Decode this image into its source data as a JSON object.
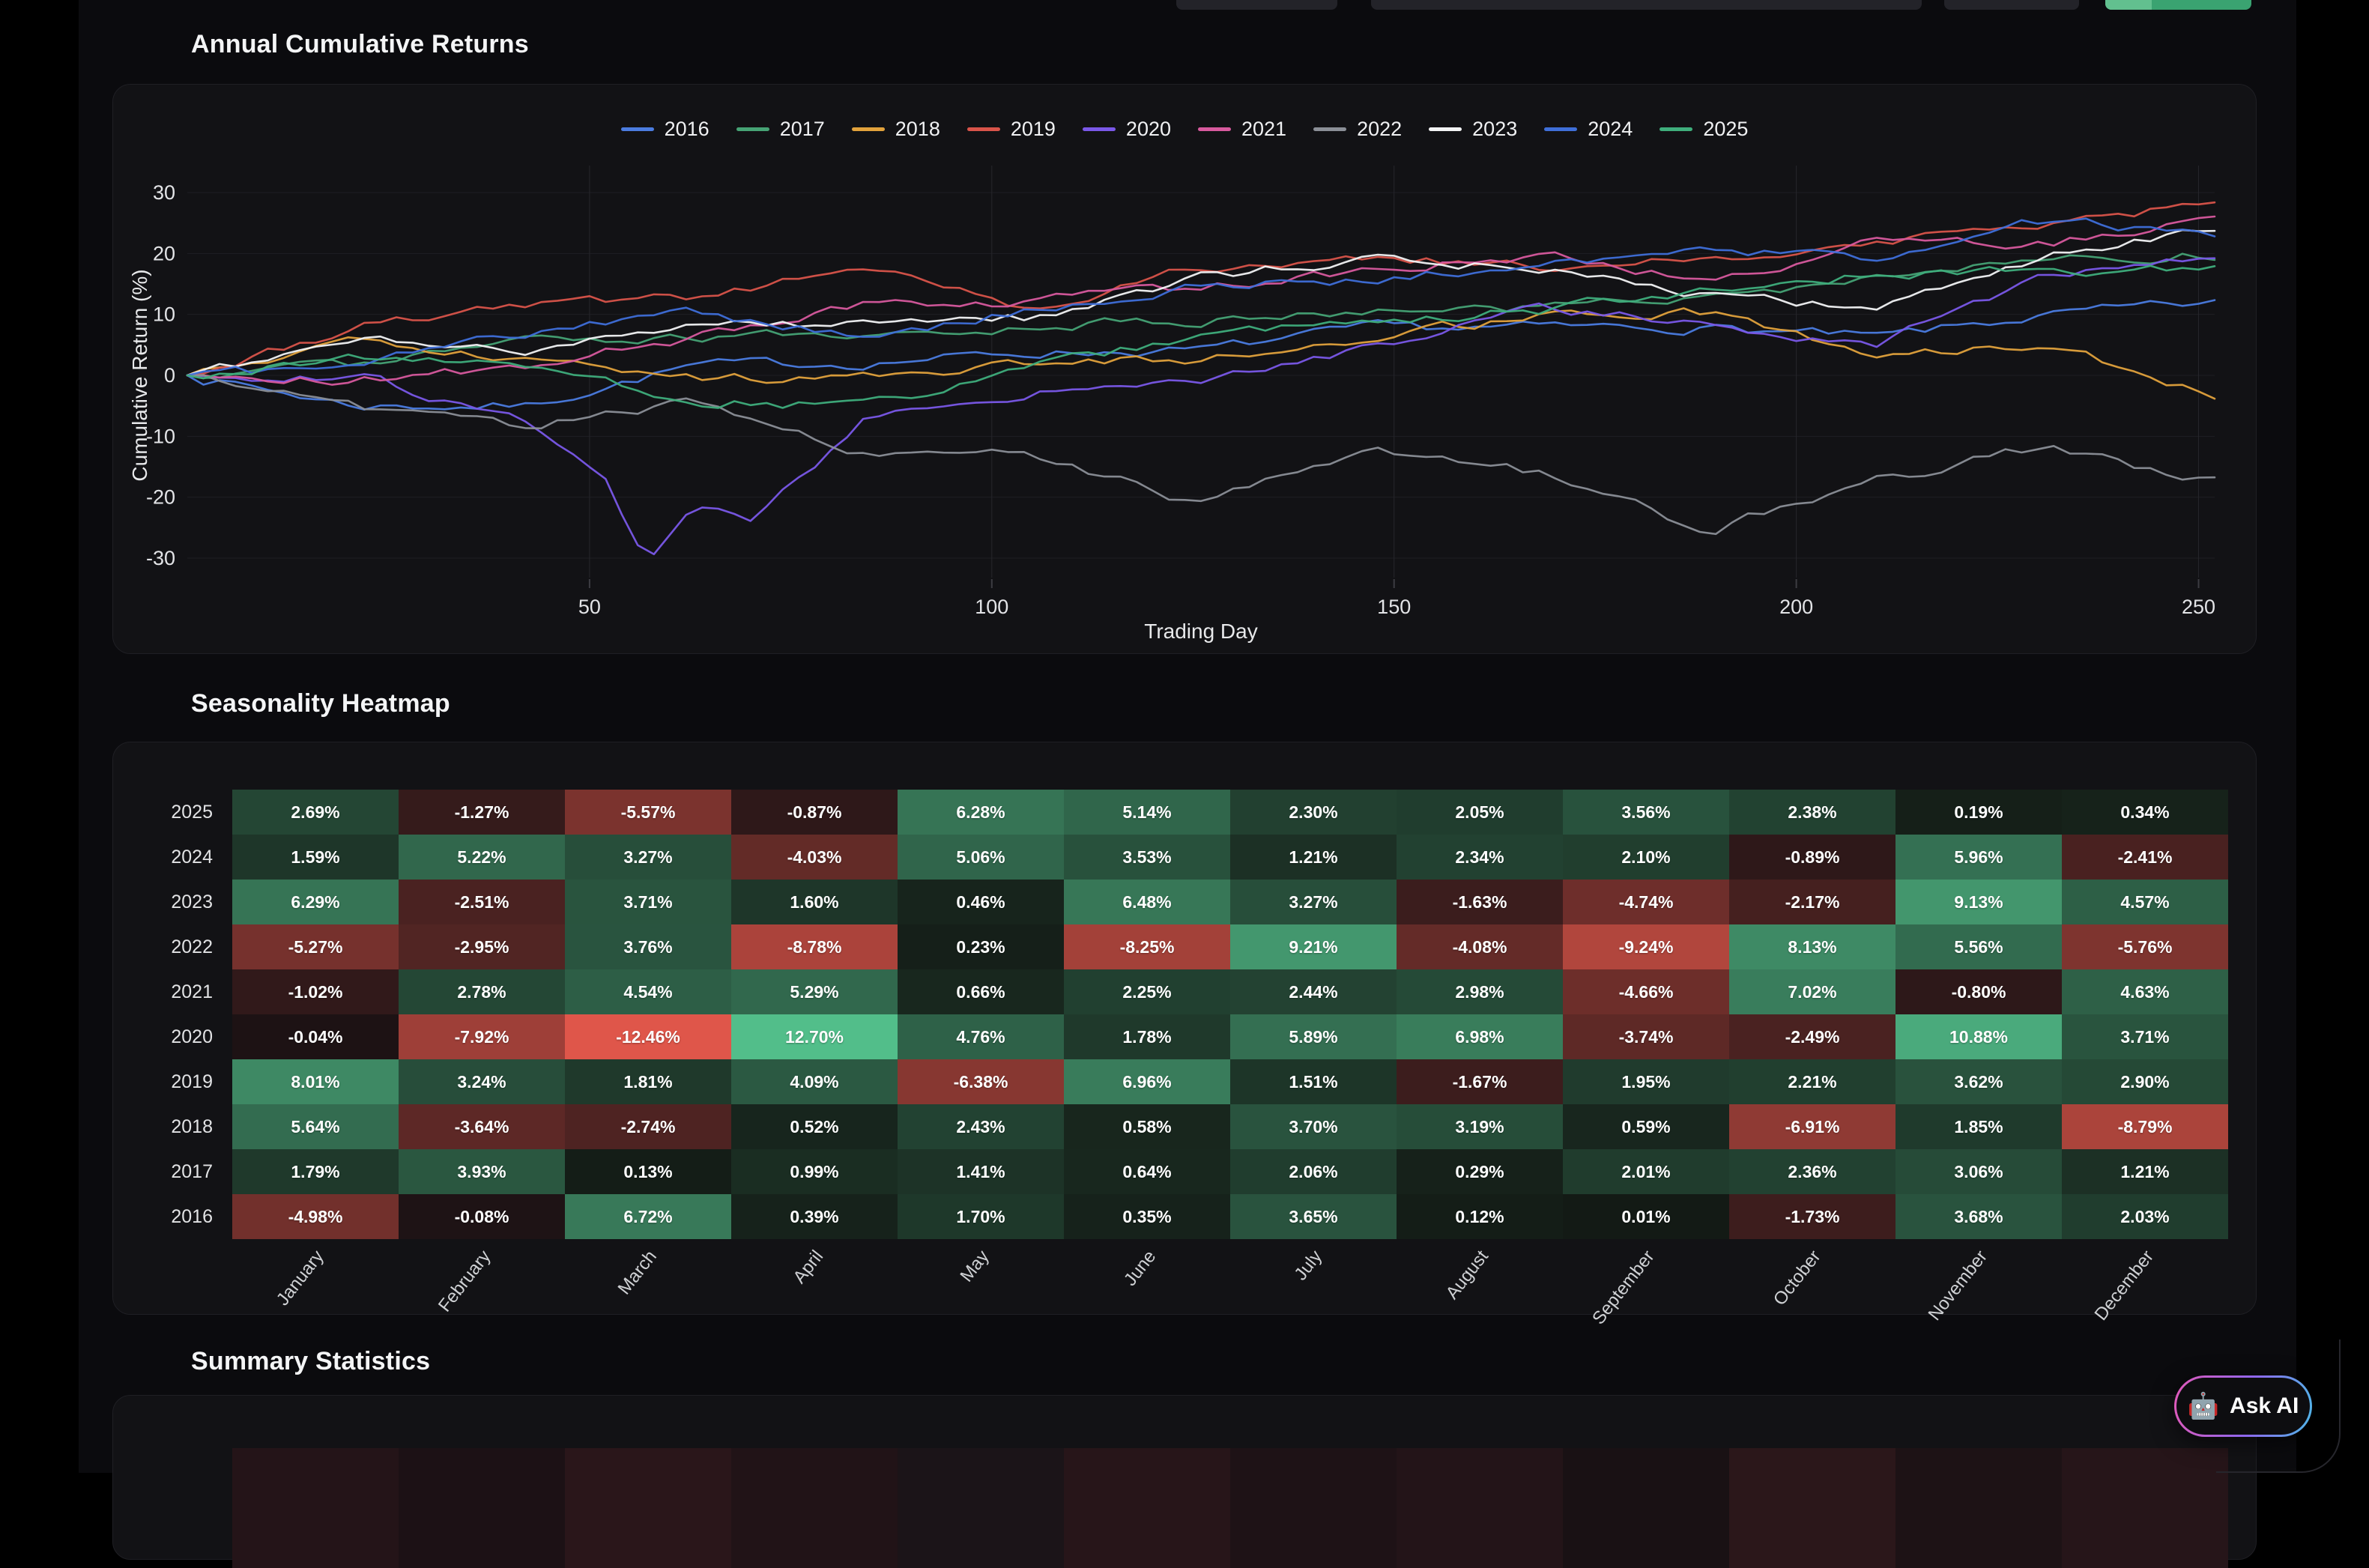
{
  "sections": {
    "returns_title": "Annual Cumulative Returns",
    "heatmap_title": "Seasonality Heatmap",
    "summary_title": "Summary Statistics"
  },
  "colors": {
    "page_bg": "#000000",
    "content_bg": "#0b0b0e",
    "card_bg": "#121215",
    "card_border": "#1f1f24",
    "h_grid_line": "#1f1f24",
    "v_grid_line": "#26262b",
    "tick_mark": "#3c3c42",
    "positive_bright": "#52be8a",
    "positive_dark": "#131a15",
    "negative_bright": "#e0564a",
    "negative_dark": "#1c1214",
    "toolbar_stub": "#232329",
    "toolbar_green": "#3aa371",
    "toolbar_green_light": "#62c08f"
  },
  "chart_data": {
    "type": "line",
    "title": "Annual Cumulative Returns",
    "xlabel": "Trading Day",
    "ylabel": "Cumulative Return (%)",
    "xlim": [
      0,
      253
    ],
    "ylim": [
      -33,
      34
    ],
    "x_ticks": [
      50,
      100,
      150,
      200,
      250
    ],
    "y_ticks": [
      30,
      20,
      10,
      0,
      -10,
      -20,
      -30
    ],
    "grid": true,
    "legend_position": "top-center",
    "series": [
      {
        "name": "2016",
        "color": "#4b7ce0",
        "points": [
          [
            0,
            0
          ],
          [
            21,
            -4.98
          ],
          [
            42,
            -5.06
          ],
          [
            63,
            1.66
          ],
          [
            84,
            2.05
          ],
          [
            105,
            3.75
          ],
          [
            126,
            4.1
          ],
          [
            147,
            7.75
          ],
          [
            168,
            7.87
          ],
          [
            189,
            7.88
          ],
          [
            210,
            6.15
          ],
          [
            231,
            9.83
          ],
          [
            252,
            11.86
          ]
        ]
      },
      {
        "name": "2017",
        "color": "#46a375",
        "points": [
          [
            0,
            0
          ],
          [
            21,
            1.79
          ],
          [
            42,
            5.72
          ],
          [
            63,
            5.85
          ],
          [
            84,
            6.84
          ],
          [
            105,
            8.25
          ],
          [
            126,
            8.89
          ],
          [
            147,
            10.95
          ],
          [
            168,
            11.24
          ],
          [
            189,
            13.25
          ],
          [
            210,
            15.61
          ],
          [
            231,
            18.67
          ],
          [
            252,
            19.88
          ]
        ]
      },
      {
        "name": "2018",
        "color": "#e2a23c",
        "points": [
          [
            0,
            0
          ],
          [
            21,
            5.64
          ],
          [
            42,
            2.0
          ],
          [
            63,
            -0.74
          ],
          [
            84,
            -0.22
          ],
          [
            105,
            2.21
          ],
          [
            126,
            2.79
          ],
          [
            147,
            6.49
          ],
          [
            168,
            9.68
          ],
          [
            189,
            10.27
          ],
          [
            210,
            3.36
          ],
          [
            231,
            5.21
          ],
          [
            252,
            -3.58
          ]
        ]
      },
      {
        "name": "2019",
        "color": "#d9544a",
        "points": [
          [
            0,
            0
          ],
          [
            21,
            8.01
          ],
          [
            42,
            11.25
          ],
          [
            63,
            13.06
          ],
          [
            84,
            17.15
          ],
          [
            105,
            10.77
          ],
          [
            126,
            17.73
          ],
          [
            147,
            19.24
          ],
          [
            168,
            17.57
          ],
          [
            189,
            19.52
          ],
          [
            210,
            21.73
          ],
          [
            231,
            25.35
          ],
          [
            252,
            28.25
          ]
        ]
      },
      {
        "name": "2020",
        "color": "#7a58e8",
        "points": [
          [
            0,
            0
          ],
          [
            21,
            -0.04
          ],
          [
            42,
            -7.96
          ],
          [
            52,
            -17.0
          ],
          [
            57,
            -30.5
          ],
          [
            63,
            -20.42
          ],
          [
            70,
            -24.0
          ],
          [
            84,
            -7.72
          ],
          [
            105,
            -2.96
          ],
          [
            126,
            -1.18
          ],
          [
            147,
            4.71
          ],
          [
            168,
            11.69
          ],
          [
            189,
            7.95
          ],
          [
            210,
            5.46
          ],
          [
            231,
            16.34
          ],
          [
            252,
            20.05
          ]
        ]
      },
      {
        "name": "2021",
        "color": "#d85a9e",
        "points": [
          [
            0,
            0
          ],
          [
            21,
            -1.02
          ],
          [
            42,
            1.76
          ],
          [
            63,
            6.3
          ],
          [
            84,
            11.59
          ],
          [
            105,
            12.25
          ],
          [
            126,
            14.5
          ],
          [
            147,
            16.94
          ],
          [
            168,
            19.92
          ],
          [
            189,
            15.26
          ],
          [
            210,
            22.28
          ],
          [
            231,
            21.48
          ],
          [
            252,
            26.11
          ]
        ]
      },
      {
        "name": "2022",
        "color": "#8b8f97",
        "points": [
          [
            0,
            0
          ],
          [
            21,
            -5.27
          ],
          [
            42,
            -8.22
          ],
          [
            63,
            -4.46
          ],
          [
            84,
            -13.24
          ],
          [
            105,
            -13.01
          ],
          [
            126,
            -21.26
          ],
          [
            147,
            -12.05
          ],
          [
            168,
            -16.13
          ],
          [
            189,
            -25.37
          ],
          [
            210,
            -17.24
          ],
          [
            231,
            -11.68
          ],
          [
            252,
            -17.44
          ]
        ]
      },
      {
        "name": "2023",
        "color": "#f2f3f4",
        "points": [
          [
            0,
            0
          ],
          [
            21,
            6.29
          ],
          [
            42,
            3.78
          ],
          [
            63,
            7.49
          ],
          [
            84,
            9.09
          ],
          [
            105,
            9.55
          ],
          [
            126,
            16.03
          ],
          [
            147,
            19.3
          ],
          [
            168,
            17.67
          ],
          [
            189,
            12.93
          ],
          [
            210,
            10.76
          ],
          [
            231,
            19.89
          ],
          [
            252,
            24.46
          ]
        ]
      },
      {
        "name": "2024",
        "color": "#3f6fd9",
        "points": [
          [
            0,
            0
          ],
          [
            21,
            1.59
          ],
          [
            42,
            6.81
          ],
          [
            63,
            10.08
          ],
          [
            84,
            6.05
          ],
          [
            105,
            11.11
          ],
          [
            126,
            14.64
          ],
          [
            147,
            15.85
          ],
          [
            168,
            18.19
          ],
          [
            189,
            20.29
          ],
          [
            210,
            19.4
          ],
          [
            231,
            25.36
          ],
          [
            252,
            22.95
          ]
        ]
      },
      {
        "name": "2025",
        "color": "#3fae7c",
        "points": [
          [
            0,
            0
          ],
          [
            21,
            2.69
          ],
          [
            42,
            1.42
          ],
          [
            63,
            -4.15
          ],
          [
            84,
            -5.02
          ],
          [
            105,
            1.26
          ],
          [
            126,
            6.4
          ],
          [
            147,
            8.7
          ],
          [
            168,
            10.75
          ],
          [
            189,
            14.31
          ],
          [
            210,
            16.69
          ],
          [
            231,
            16.88
          ],
          [
            252,
            17.22
          ]
        ]
      }
    ]
  },
  "heatmap": {
    "years": [
      "2025",
      "2024",
      "2023",
      "2022",
      "2021",
      "2020",
      "2019",
      "2018",
      "2017",
      "2016"
    ],
    "months": [
      "January",
      "February",
      "March",
      "April",
      "May",
      "June",
      "July",
      "August",
      "September",
      "October",
      "November",
      "December"
    ],
    "values": [
      [
        2.69,
        -1.27,
        -5.57,
        -0.87,
        6.28,
        5.14,
        2.3,
        2.05,
        3.56,
        2.38,
        0.19,
        0.34
      ],
      [
        1.59,
        5.22,
        3.27,
        -4.03,
        5.06,
        3.53,
        1.21,
        2.34,
        2.1,
        -0.89,
        5.96,
        -2.41
      ],
      [
        6.29,
        -2.51,
        3.71,
        1.6,
        0.46,
        6.48,
        3.27,
        -1.63,
        -4.74,
        -2.17,
        9.13,
        4.57
      ],
      [
        -5.27,
        -2.95,
        3.76,
        -8.78,
        0.23,
        -8.25,
        9.21,
        -4.08,
        -9.24,
        8.13,
        5.56,
        -5.76
      ],
      [
        -1.02,
        2.78,
        4.54,
        5.29,
        0.66,
        2.25,
        2.44,
        2.98,
        -4.66,
        7.02,
        -0.8,
        4.63
      ],
      [
        -0.04,
        -7.92,
        -12.46,
        12.7,
        4.76,
        1.78,
        5.89,
        6.98,
        -3.74,
        -2.49,
        10.88,
        3.71
      ],
      [
        8.01,
        3.24,
        1.81,
        4.09,
        -6.38,
        6.96,
        1.51,
        -1.67,
        1.95,
        2.21,
        3.62,
        2.9
      ],
      [
        5.64,
        -3.64,
        -2.74,
        0.52,
        2.43,
        0.58,
        3.7,
        3.19,
        0.59,
        -6.91,
        1.85,
        -8.79
      ],
      [
        1.79,
        3.93,
        0.13,
        0.99,
        1.41,
        0.64,
        2.06,
        0.29,
        2.01,
        2.36,
        3.06,
        1.21
      ],
      [
        -4.98,
        -0.08,
        6.72,
        0.39,
        1.7,
        0.35,
        3.65,
        0.12,
        0.01,
        -1.73,
        3.68,
        2.03
      ]
    ]
  },
  "summary": {
    "partial_row_colors": [
      "#241418",
      "#1c1115",
      "#2a161a",
      "#211317",
      "#1b1418",
      "#271519",
      "#1e1216",
      "#231418",
      "#191114",
      "#2b171a",
      "#1d1215",
      "#261519"
    ]
  },
  "ask_ai": {
    "icon": "🤖",
    "label": "Ask AI"
  }
}
